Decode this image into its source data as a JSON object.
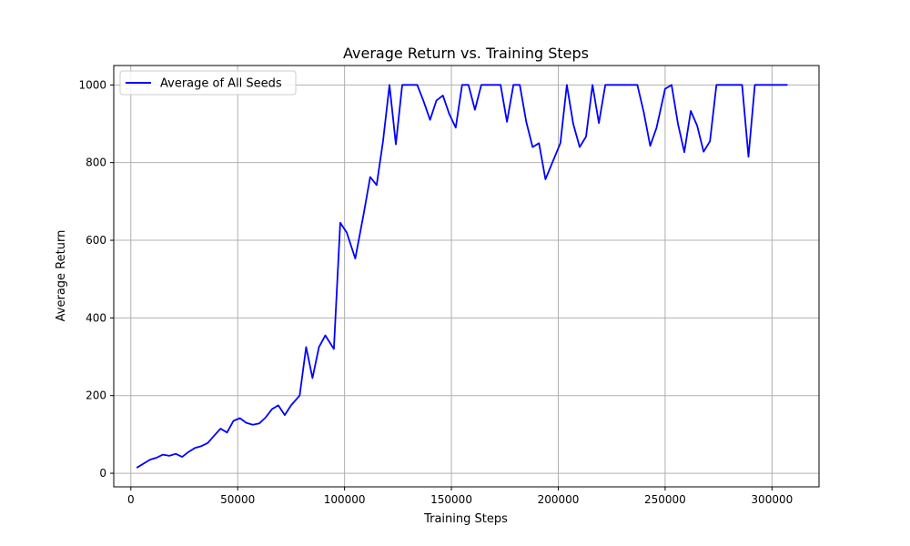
{
  "chart_data": {
    "type": "line",
    "title": "Average Return vs. Training Steps",
    "xlabel": "Training Steps",
    "ylabel": "Average Return",
    "xlim": [
      -8000,
      322000
    ],
    "ylim": [
      -35,
      1050
    ],
    "xticks": [
      0,
      50000,
      100000,
      150000,
      200000,
      250000,
      300000
    ],
    "xtick_labels": [
      "0",
      "50000",
      "100000",
      "150000",
      "200000",
      "250000",
      "300000"
    ],
    "yticks": [
      0,
      200,
      400,
      600,
      800,
      1000
    ],
    "ytick_labels": [
      "0",
      "200",
      "400",
      "600",
      "800",
      "1000"
    ],
    "grid": true,
    "legend_position": "top-left",
    "series": [
      {
        "name": "Average of All Seeds",
        "color": "#0000ff",
        "x": [
          3000,
          9000,
          12000,
          15000,
          18000,
          21000,
          24000,
          27000,
          30000,
          33000,
          36000,
          39000,
          42000,
          45000,
          48000,
          51000,
          54000,
          57000,
          60000,
          63000,
          66000,
          69000,
          72000,
          75000,
          79000,
          82000,
          85000,
          88000,
          91000,
          95000,
          98000,
          101000,
          105000,
          109000,
          112000,
          115000,
          118000,
          121000,
          124000,
          127000,
          134000,
          137000,
          140000,
          143000,
          146000,
          149000,
          152000,
          155000,
          158000,
          161000,
          164000,
          173000,
          176000,
          179000,
          182000,
          185000,
          188000,
          191000,
          194000,
          201000,
          204000,
          207000,
          210000,
          213000,
          216000,
          219000,
          222000,
          237000,
          240000,
          243000,
          246000,
          250000,
          253000,
          256000,
          259000,
          262000,
          265000,
          268000,
          271000,
          274000,
          286000,
          289000,
          292000,
          307000
        ],
        "values": [
          15,
          35,
          40,
          48,
          45,
          50,
          42,
          55,
          65,
          70,
          78,
          97,
          115,
          105,
          135,
          142,
          130,
          125,
          128,
          143,
          165,
          175,
          150,
          175,
          200,
          325,
          245,
          325,
          355,
          320,
          645,
          620,
          553,
          670,
          763,
          742,
          855,
          1000,
          847,
          1000,
          1000,
          958,
          910,
          960,
          973,
          925,
          890,
          1000,
          1000,
          936,
          1000,
          1000,
          905,
          1000,
          1000,
          905,
          840,
          850,
          757,
          850,
          1000,
          900,
          840,
          867,
          1000,
          902,
          1000,
          1000,
          930,
          843,
          890,
          990,
          1000,
          900,
          827,
          933,
          895,
          828,
          855,
          1000,
          1000,
          815,
          1000,
          1000
        ]
      }
    ]
  }
}
